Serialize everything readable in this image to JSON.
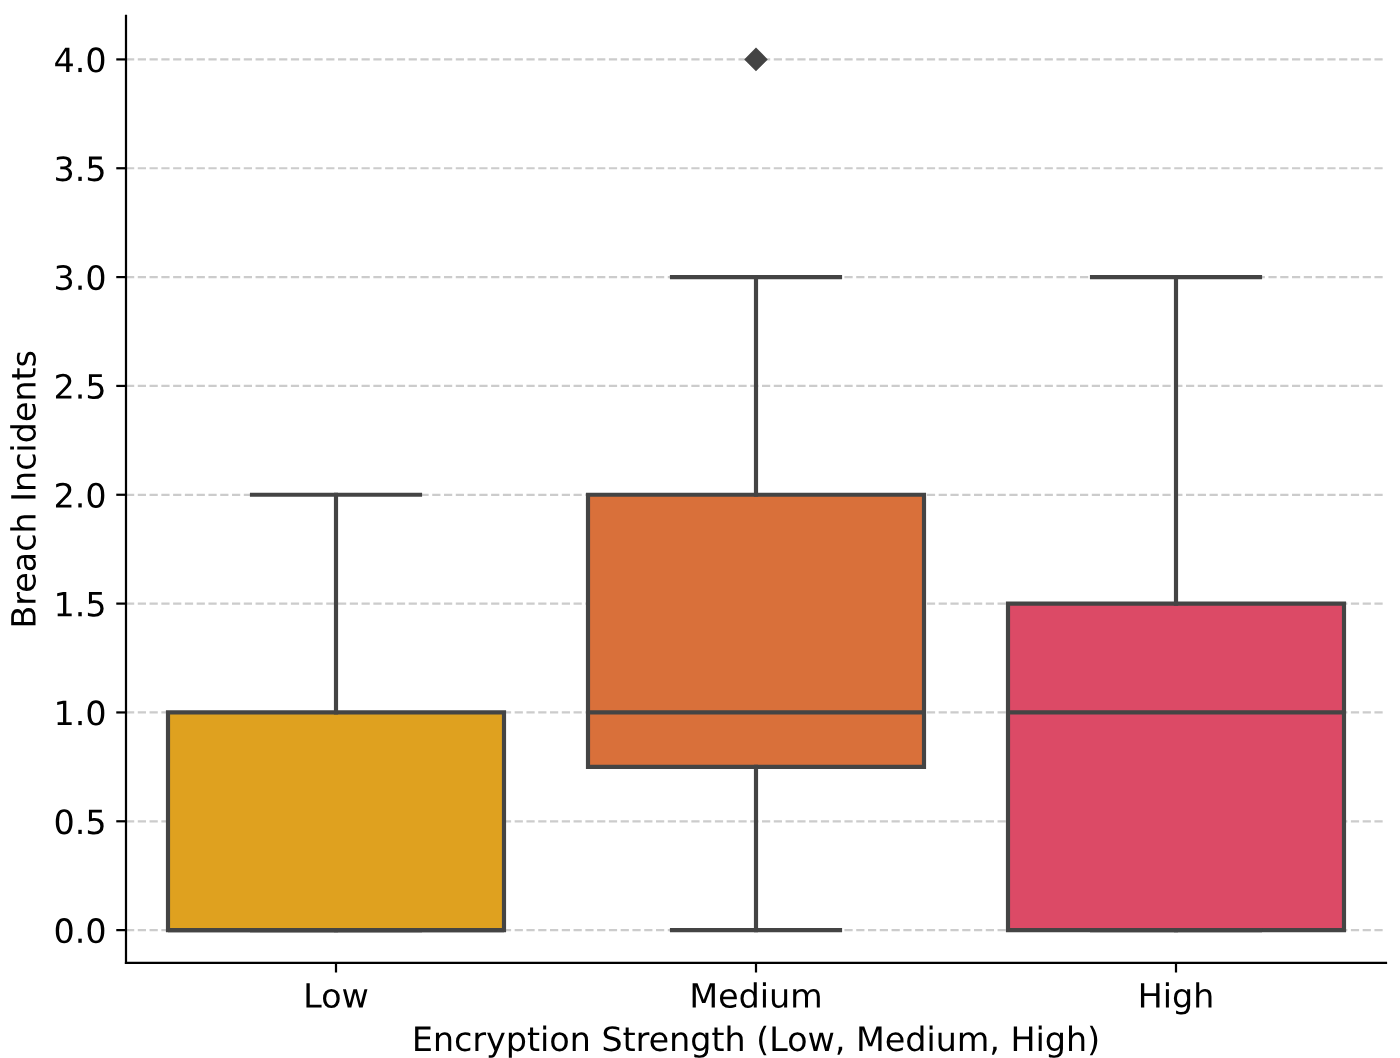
{
  "chart_data": {
    "type": "box",
    "xlabel": "Encryption Strength (Low, Medium, High)",
    "ylabel": "Breach Incidents",
    "categories": [
      "Low",
      "Medium",
      "High"
    ],
    "colors": [
      "#dfa11f",
      "#d9703a",
      "#dc4a66"
    ],
    "boxes": [
      {
        "low": 0,
        "q1": 0,
        "median": 0,
        "q3": 1,
        "high": 2
      },
      {
        "low": 0,
        "q1": 0.75,
        "median": 1,
        "q3": 2,
        "high": 3,
        "outliers": [
          4
        ]
      },
      {
        "low": 0,
        "q1": 0,
        "median": 1,
        "q3": 1.5,
        "high": 3
      }
    ],
    "ylim": [
      -0.15,
      4.2
    ],
    "yticks": [
      {
        "value": 0,
        "label": "0.0"
      },
      {
        "value": 0.5,
        "label": "0.5"
      },
      {
        "value": 1,
        "label": "1.0"
      },
      {
        "value": 1.5,
        "label": "1.5"
      },
      {
        "value": 2,
        "label": "2.0"
      },
      {
        "value": 2.5,
        "label": "2.5"
      },
      {
        "value": 3,
        "label": "3.0"
      },
      {
        "value": 3.5,
        "label": "3.5"
      },
      {
        "value": 4,
        "label": "4.0"
      }
    ],
    "grid": "y",
    "line_style": "dashed"
  }
}
